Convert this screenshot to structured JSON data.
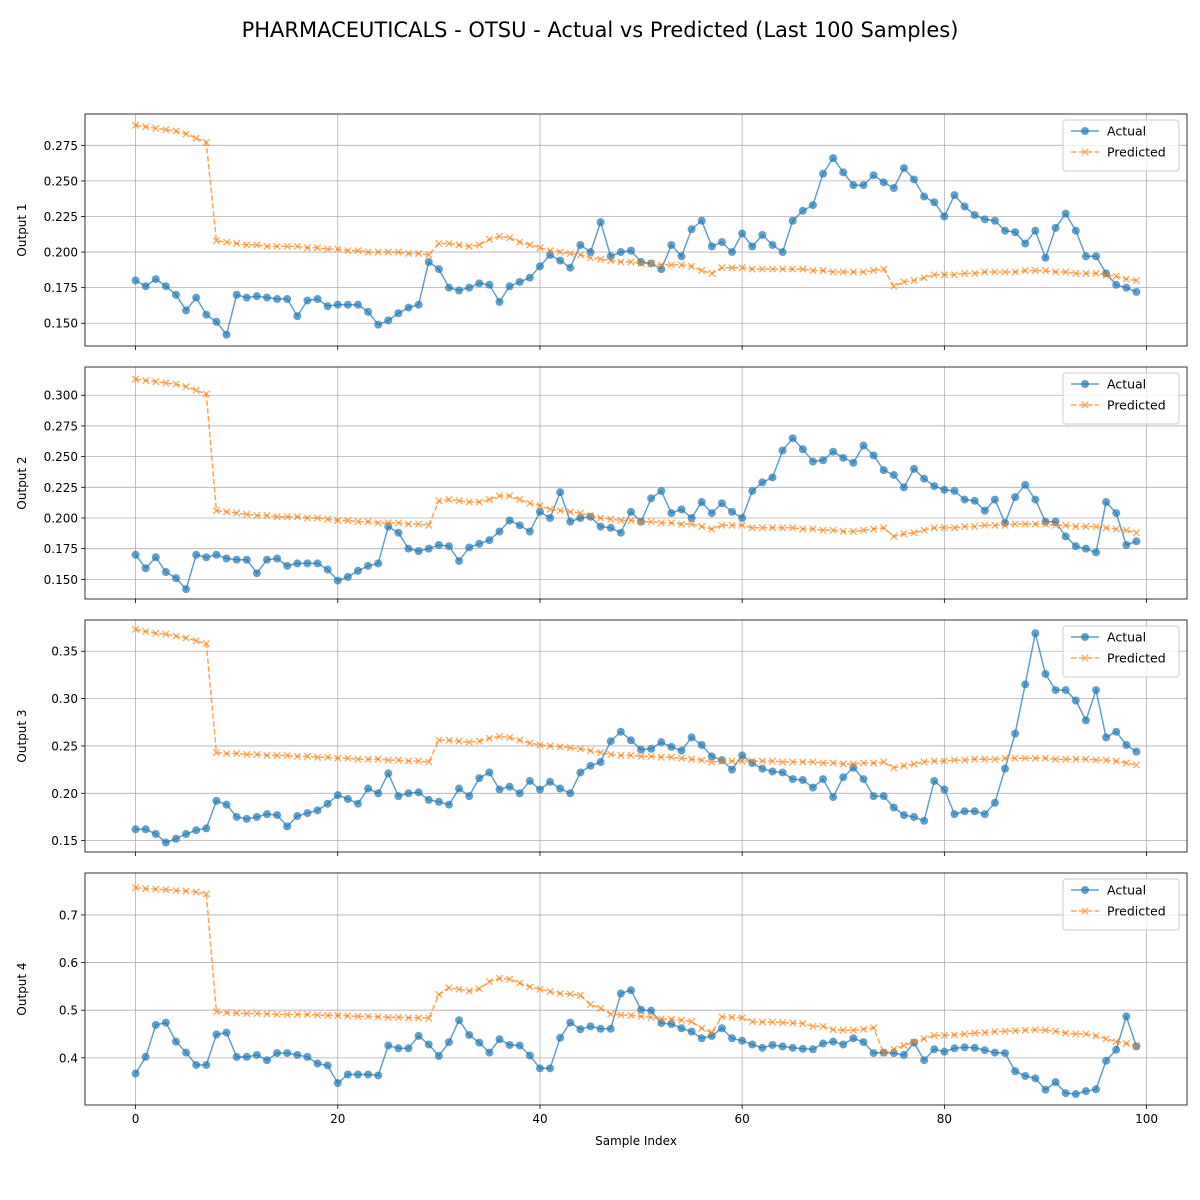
{
  "title": "PHARMACEUTICALS - OTSU - Actual vs Predicted (Last 100 Samples)",
  "colors": {
    "actual": "#1f77b4",
    "predicted": "#ff7f0e",
    "grid": "#b0b0b0"
  },
  "chart_data": {
    "type": "line",
    "xlabel": "Sample Index",
    "xlim": [
      -5,
      104
    ],
    "xticks": [
      "0",
      "20",
      "40",
      "60",
      "80",
      "100"
    ],
    "grid": true,
    "legend_position": "top-right",
    "legend": [
      "Actual",
      "Predicted"
    ],
    "panels": [
      {
        "ylabel": "Output 1",
        "ylim": [
          0.134,
          0.297
        ],
        "yticks": [
          "0.150",
          "0.175",
          "0.200",
          "0.225",
          "0.250",
          "0.275"
        ],
        "series": [
          {
            "name": "Actual",
            "marker": "circle",
            "style": "solid",
            "values": [
              0.18,
              0.176,
              0.181,
              0.176,
              0.17,
              0.159,
              0.168,
              0.156,
              0.151,
              0.142,
              0.17,
              0.168,
              0.169,
              0.168,
              0.167,
              0.167,
              0.155,
              0.166,
              0.167,
              0.162,
              0.163,
              0.163,
              0.163,
              0.158,
              0.149,
              0.152,
              0.157,
              0.161,
              0.163,
              0.193,
              0.188,
              0.175,
              0.173,
              0.175,
              0.178,
              0.177,
              0.165,
              0.176,
              0.179,
              0.182,
              0.19,
              0.198,
              0.194,
              0.189,
              0.205,
              0.2,
              0.221,
              0.197,
              0.2,
              0.201,
              0.193,
              0.192,
              0.188,
              0.205,
              0.197,
              0.216,
              0.222,
              0.204,
              0.207,
              0.2,
              0.213,
              0.204,
              0.212,
              0.205,
              0.2,
              0.222,
              0.229,
              0.233,
              0.255,
              0.266,
              0.256,
              0.247,
              0.247,
              0.254,
              0.249,
              0.245,
              0.259,
              0.251,
              0.239,
              0.235,
              0.225,
              0.24,
              0.232,
              0.226,
              0.223,
              0.222,
              0.215,
              0.214,
              0.206,
              0.215,
              0.196,
              0.217,
              0.227,
              0.215,
              0.197,
              0.197,
              0.185,
              0.177,
              0.175,
              0.172
            ]
          },
          {
            "name": "Predicted",
            "marker": "x",
            "style": "dashed",
            "values": [
              0.289,
              0.288,
              0.287,
              0.286,
              0.285,
              0.283,
              0.28,
              0.277,
              0.208,
              0.207,
              0.206,
              0.205,
              0.205,
              0.204,
              0.204,
              0.204,
              0.204,
              0.203,
              0.203,
              0.202,
              0.202,
              0.201,
              0.201,
              0.2,
              0.2,
              0.2,
              0.2,
              0.199,
              0.199,
              0.198,
              0.206,
              0.206,
              0.205,
              0.204,
              0.205,
              0.209,
              0.211,
              0.21,
              0.207,
              0.205,
              0.203,
              0.201,
              0.2,
              0.199,
              0.198,
              0.196,
              0.195,
              0.194,
              0.193,
              0.193,
              0.192,
              0.192,
              0.191,
              0.191,
              0.191,
              0.19,
              0.187,
              0.185,
              0.189,
              0.189,
              0.189,
              0.188,
              0.188,
              0.188,
              0.188,
              0.188,
              0.188,
              0.187,
              0.187,
              0.186,
              0.186,
              0.186,
              0.186,
              0.187,
              0.188,
              0.176,
              0.179,
              0.18,
              0.182,
              0.184,
              0.184,
              0.184,
              0.185,
              0.185,
              0.186,
              0.186,
              0.186,
              0.186,
              0.187,
              0.187,
              0.187,
              0.186,
              0.186,
              0.185,
              0.185,
              0.185,
              0.184,
              0.183,
              0.181,
              0.18
            ]
          }
        ]
      },
      {
        "ylabel": "Output 2",
        "ylim": [
          0.134,
          0.323
        ],
        "yticks": [
          "0.150",
          "0.175",
          "0.200",
          "0.225",
          "0.250",
          "0.275",
          "0.300"
        ],
        "series": [
          {
            "name": "Actual",
            "marker": "circle",
            "style": "solid",
            "values": [
              0.17,
              0.159,
              0.168,
              0.156,
              0.151,
              0.142,
              0.17,
              0.168,
              0.17,
              0.167,
              0.166,
              0.166,
              0.155,
              0.166,
              0.167,
              0.161,
              0.163,
              0.163,
              0.163,
              0.158,
              0.149,
              0.152,
              0.157,
              0.161,
              0.163,
              0.193,
              0.188,
              0.175,
              0.173,
              0.175,
              0.178,
              0.177,
              0.165,
              0.176,
              0.179,
              0.182,
              0.189,
              0.198,
              0.194,
              0.189,
              0.205,
              0.2,
              0.221,
              0.197,
              0.2,
              0.201,
              0.193,
              0.192,
              0.188,
              0.205,
              0.197,
              0.216,
              0.222,
              0.204,
              0.207,
              0.2,
              0.213,
              0.204,
              0.212,
              0.205,
              0.2,
              0.222,
              0.229,
              0.233,
              0.255,
              0.265,
              0.256,
              0.246,
              0.247,
              0.254,
              0.249,
              0.245,
              0.259,
              0.251,
              0.239,
              0.235,
              0.225,
              0.24,
              0.232,
              0.226,
              0.223,
              0.222,
              0.215,
              0.214,
              0.206,
              0.215,
              0.196,
              0.217,
              0.227,
              0.215,
              0.197,
              0.197,
              0.185,
              0.177,
              0.175,
              0.172,
              0.213,
              0.204,
              0.178,
              0.181
            ]
          },
          {
            "name": "Predicted",
            "marker": "x",
            "style": "dashed",
            "values": [
              0.313,
              0.312,
              0.311,
              0.31,
              0.309,
              0.307,
              0.304,
              0.301,
              0.206,
              0.205,
              0.204,
              0.203,
              0.202,
              0.202,
              0.201,
              0.201,
              0.201,
              0.2,
              0.2,
              0.199,
              0.198,
              0.198,
              0.197,
              0.197,
              0.196,
              0.196,
              0.196,
              0.195,
              0.195,
              0.194,
              0.214,
              0.215,
              0.214,
              0.213,
              0.213,
              0.215,
              0.218,
              0.218,
              0.215,
              0.212,
              0.21,
              0.207,
              0.206,
              0.205,
              0.204,
              0.202,
              0.2,
              0.199,
              0.198,
              0.198,
              0.197,
              0.197,
              0.196,
              0.196,
              0.195,
              0.195,
              0.193,
              0.191,
              0.194,
              0.194,
              0.194,
              0.192,
              0.192,
              0.192,
              0.192,
              0.192,
              0.191,
              0.191,
              0.19,
              0.19,
              0.189,
              0.189,
              0.19,
              0.191,
              0.192,
              0.185,
              0.187,
              0.188,
              0.19,
              0.192,
              0.192,
              0.192,
              0.193,
              0.193,
              0.194,
              0.194,
              0.194,
              0.195,
              0.195,
              0.195,
              0.195,
              0.194,
              0.194,
              0.193,
              0.193,
              0.193,
              0.192,
              0.191,
              0.19,
              0.188
            ]
          }
        ]
      },
      {
        "ylabel": "Output 3",
        "ylim": [
          0.138,
          0.383
        ],
        "yticks": [
          "0.15",
          "0.20",
          "0.25",
          "0.30",
          "0.35"
        ],
        "series": [
          {
            "name": "Actual",
            "marker": "circle",
            "style": "solid",
            "values": [
              0.162,
              0.162,
              0.157,
              0.148,
              0.152,
              0.157,
              0.161,
              0.163,
              0.192,
              0.188,
              0.175,
              0.173,
              0.175,
              0.178,
              0.177,
              0.165,
              0.176,
              0.179,
              0.182,
              0.189,
              0.198,
              0.194,
              0.189,
              0.205,
              0.2,
              0.221,
              0.197,
              0.2,
              0.201,
              0.193,
              0.191,
              0.188,
              0.205,
              0.197,
              0.216,
              0.222,
              0.204,
              0.207,
              0.2,
              0.213,
              0.204,
              0.212,
              0.205,
              0.2,
              0.222,
              0.229,
              0.233,
              0.255,
              0.265,
              0.256,
              0.246,
              0.247,
              0.254,
              0.249,
              0.245,
              0.259,
              0.251,
              0.239,
              0.235,
              0.225,
              0.24,
              0.232,
              0.226,
              0.223,
              0.222,
              0.215,
              0.214,
              0.206,
              0.215,
              0.196,
              0.217,
              0.227,
              0.215,
              0.197,
              0.197,
              0.185,
              0.177,
              0.175,
              0.171,
              0.213,
              0.204,
              0.178,
              0.181,
              0.181,
              0.178,
              0.19,
              0.226,
              0.263,
              0.315,
              0.369,
              0.326,
              0.309,
              0.309,
              0.298,
              0.277,
              0.309,
              0.259,
              0.265,
              0.251,
              0.244
            ]
          },
          {
            "name": "Predicted",
            "marker": "x",
            "style": "dashed",
            "values": [
              0.373,
              0.371,
              0.369,
              0.368,
              0.366,
              0.364,
              0.361,
              0.358,
              0.243,
              0.242,
              0.242,
              0.241,
              0.241,
              0.24,
              0.24,
              0.24,
              0.239,
              0.239,
              0.238,
              0.238,
              0.237,
              0.237,
              0.236,
              0.236,
              0.236,
              0.235,
              0.235,
              0.234,
              0.234,
              0.233,
              0.256,
              0.256,
              0.255,
              0.254,
              0.255,
              0.258,
              0.26,
              0.259,
              0.256,
              0.253,
              0.251,
              0.25,
              0.249,
              0.248,
              0.247,
              0.245,
              0.243,
              0.241,
              0.24,
              0.24,
              0.239,
              0.239,
              0.238,
              0.238,
              0.237,
              0.236,
              0.235,
              0.233,
              0.234,
              0.234,
              0.234,
              0.234,
              0.234,
              0.234,
              0.233,
              0.233,
              0.233,
              0.233,
              0.232,
              0.232,
              0.231,
              0.231,
              0.232,
              0.232,
              0.233,
              0.227,
              0.229,
              0.231,
              0.233,
              0.234,
              0.234,
              0.235,
              0.235,
              0.236,
              0.236,
              0.236,
              0.237,
              0.237,
              0.237,
              0.237,
              0.237,
              0.236,
              0.236,
              0.236,
              0.236,
              0.235,
              0.235,
              0.234,
              0.232,
              0.23
            ]
          }
        ]
      },
      {
        "ylabel": "Output 4",
        "ylim": [
          0.301,
          0.788
        ],
        "yticks": [
          "0.4",
          "0.5",
          "0.6",
          "0.7"
        ],
        "series": [
          {
            "name": "Actual",
            "marker": "circle",
            "style": "solid",
            "values": [
              0.367,
              0.402,
              0.469,
              0.474,
              0.434,
              0.411,
              0.385,
              0.385,
              0.449,
              0.453,
              0.402,
              0.402,
              0.406,
              0.395,
              0.41,
              0.41,
              0.406,
              0.402,
              0.388,
              0.384,
              0.347,
              0.365,
              0.365,
              0.365,
              0.363,
              0.426,
              0.42,
              0.42,
              0.446,
              0.428,
              0.404,
              0.433,
              0.479,
              0.448,
              0.432,
              0.411,
              0.439,
              0.427,
              0.426,
              0.405,
              0.378,
              0.378,
              0.442,
              0.474,
              0.46,
              0.466,
              0.461,
              0.461,
              0.535,
              0.542,
              0.501,
              0.499,
              0.473,
              0.471,
              0.462,
              0.455,
              0.441,
              0.446,
              0.462,
              0.441,
              0.436,
              0.428,
              0.421,
              0.427,
              0.424,
              0.421,
              0.419,
              0.418,
              0.43,
              0.434,
              0.428,
              0.441,
              0.433,
              0.41,
              0.411,
              0.41,
              0.406,
              0.432,
              0.395,
              0.418,
              0.413,
              0.42,
              0.422,
              0.421,
              0.416,
              0.411,
              0.41,
              0.372,
              0.362,
              0.357,
              0.333,
              0.349,
              0.326,
              0.324,
              0.33,
              0.334,
              0.394,
              0.417,
              0.487,
              0.424
            ]
          },
          {
            "name": "Predicted",
            "marker": "x",
            "style": "dashed",
            "values": [
              0.757,
              0.755,
              0.754,
              0.753,
              0.751,
              0.75,
              0.748,
              0.744,
              0.497,
              0.495,
              0.494,
              0.493,
              0.493,
              0.492,
              0.491,
              0.491,
              0.491,
              0.491,
              0.49,
              0.489,
              0.489,
              0.488,
              0.487,
              0.487,
              0.486,
              0.485,
              0.485,
              0.484,
              0.484,
              0.483,
              0.533,
              0.547,
              0.544,
              0.54,
              0.545,
              0.56,
              0.567,
              0.565,
              0.557,
              0.549,
              0.544,
              0.539,
              0.535,
              0.534,
              0.531,
              0.512,
              0.504,
              0.492,
              0.49,
              0.489,
              0.487,
              0.485,
              0.482,
              0.481,
              0.479,
              0.476,
              0.462,
              0.453,
              0.486,
              0.485,
              0.484,
              0.476,
              0.475,
              0.475,
              0.474,
              0.473,
              0.472,
              0.466,
              0.466,
              0.459,
              0.458,
              0.458,
              0.46,
              0.463,
              0.41,
              0.418,
              0.426,
              0.433,
              0.44,
              0.447,
              0.447,
              0.448,
              0.45,
              0.452,
              0.453,
              0.455,
              0.456,
              0.457,
              0.458,
              0.459,
              0.458,
              0.456,
              0.452,
              0.45,
              0.45,
              0.446,
              0.44,
              0.434,
              0.43,
              0.425
            ]
          }
        ]
      }
    ]
  }
}
